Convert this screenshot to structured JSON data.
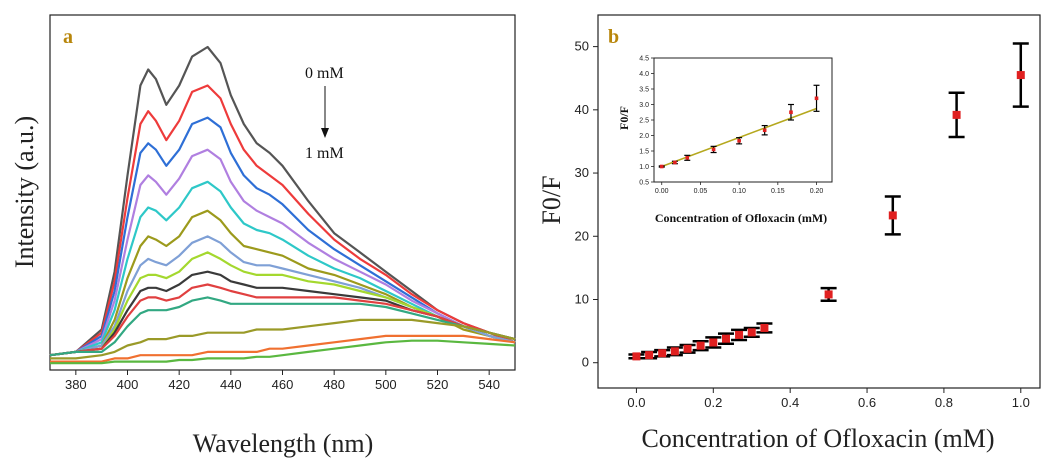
{
  "chart_data": [
    {
      "panel": "a",
      "type": "line",
      "xlabel": "Wavelength (nm)",
      "ylabel": "Intensity (a.u.)",
      "xlim": [
        370,
        550
      ],
      "xticks": [
        380,
        400,
        420,
        440,
        460,
        480,
        500,
        520,
        540
      ],
      "annotations": {
        "top": "0 mM",
        "bottom": "1 mM"
      },
      "colors": [
        "#555555",
        "#ee3b3b",
        "#2e6fd6",
        "#b07fe0",
        "#2ec8c8",
        "#9c9a1c",
        "#7fa0d6",
        "#a4d82e",
        "#3a3a3a",
        "#e04040",
        "#32a882",
        "#9a9a28",
        "#f07030",
        "#5ab840"
      ],
      "series": [
        {
          "x": [
            370,
            380,
            390,
            395,
            400,
            405,
            408,
            411,
            415,
            420,
            425,
            431,
            436,
            440,
            445,
            450,
            455,
            460,
            470,
            480,
            490,
            500,
            510,
            520,
            530,
            540,
            550
          ],
          "y": [
            0.04,
            0.05,
            0.12,
            0.3,
            0.6,
            0.88,
            0.93,
            0.9,
            0.82,
            0.88,
            0.97,
            1.0,
            0.95,
            0.85,
            0.76,
            0.7,
            0.67,
            0.63,
            0.52,
            0.42,
            0.36,
            0.3,
            0.24,
            0.18,
            0.14,
            0.11,
            0.08
          ]
        },
        {
          "x": [
            370,
            380,
            390,
            395,
            400,
            405,
            408,
            411,
            415,
            420,
            425,
            431,
            436,
            440,
            445,
            450,
            455,
            460,
            470,
            480,
            490,
            500,
            510,
            520,
            530,
            540,
            550
          ],
          "y": [
            0.04,
            0.05,
            0.11,
            0.27,
            0.53,
            0.76,
            0.8,
            0.77,
            0.71,
            0.77,
            0.86,
            0.88,
            0.84,
            0.76,
            0.68,
            0.63,
            0.6,
            0.57,
            0.48,
            0.4,
            0.34,
            0.29,
            0.23,
            0.18,
            0.14,
            0.11,
            0.08
          ]
        },
        {
          "x": [
            370,
            380,
            390,
            395,
            400,
            405,
            408,
            411,
            415,
            420,
            425,
            431,
            436,
            440,
            445,
            450,
            455,
            460,
            470,
            480,
            490,
            500,
            510,
            520,
            530,
            540,
            550
          ],
          "y": [
            0.04,
            0.05,
            0.1,
            0.24,
            0.47,
            0.67,
            0.7,
            0.68,
            0.63,
            0.68,
            0.76,
            0.78,
            0.75,
            0.67,
            0.6,
            0.56,
            0.54,
            0.51,
            0.43,
            0.37,
            0.32,
            0.27,
            0.22,
            0.17,
            0.13,
            0.1,
            0.08
          ]
        },
        {
          "x": [
            370,
            380,
            390,
            395,
            400,
            405,
            408,
            411,
            415,
            420,
            425,
            431,
            436,
            440,
            445,
            450,
            455,
            460,
            470,
            480,
            490,
            500,
            510,
            520,
            530,
            540,
            550
          ],
          "y": [
            0.04,
            0.05,
            0.09,
            0.21,
            0.4,
            0.57,
            0.6,
            0.58,
            0.54,
            0.59,
            0.66,
            0.68,
            0.65,
            0.58,
            0.52,
            0.49,
            0.47,
            0.45,
            0.39,
            0.34,
            0.3,
            0.26,
            0.21,
            0.17,
            0.13,
            0.1,
            0.08
          ]
        },
        {
          "x": [
            370,
            380,
            390,
            395,
            400,
            405,
            408,
            411,
            415,
            420,
            425,
            431,
            436,
            440,
            445,
            450,
            455,
            460,
            470,
            480,
            490,
            500,
            510,
            520,
            530,
            540,
            550
          ],
          "y": [
            0.04,
            0.05,
            0.08,
            0.18,
            0.34,
            0.47,
            0.5,
            0.49,
            0.46,
            0.5,
            0.56,
            0.58,
            0.55,
            0.5,
            0.45,
            0.43,
            0.42,
            0.4,
            0.35,
            0.31,
            0.28,
            0.24,
            0.2,
            0.16,
            0.13,
            0.1,
            0.08
          ]
        },
        {
          "x": [
            370,
            380,
            390,
            395,
            400,
            405,
            408,
            411,
            415,
            420,
            425,
            431,
            436,
            440,
            445,
            450,
            455,
            460,
            470,
            480,
            490,
            500,
            510,
            520,
            530,
            540,
            550
          ],
          "y": [
            0.04,
            0.05,
            0.07,
            0.15,
            0.28,
            0.38,
            0.41,
            0.4,
            0.38,
            0.41,
            0.47,
            0.49,
            0.46,
            0.42,
            0.38,
            0.37,
            0.36,
            0.35,
            0.31,
            0.29,
            0.26,
            0.23,
            0.19,
            0.16,
            0.12,
            0.1,
            0.08
          ]
        },
        {
          "x": [
            370,
            380,
            390,
            395,
            400,
            405,
            408,
            411,
            415,
            420,
            425,
            431,
            436,
            440,
            445,
            450,
            455,
            460,
            470,
            480,
            490,
            500,
            510,
            520,
            530,
            540,
            550
          ],
          "y": [
            0.04,
            0.05,
            0.07,
            0.13,
            0.24,
            0.32,
            0.34,
            0.33,
            0.32,
            0.35,
            0.39,
            0.41,
            0.39,
            0.36,
            0.33,
            0.32,
            0.32,
            0.31,
            0.29,
            0.27,
            0.25,
            0.22,
            0.19,
            0.16,
            0.13,
            0.1,
            0.08
          ]
        },
        {
          "x": [
            370,
            380,
            390,
            395,
            400,
            405,
            408,
            411,
            415,
            420,
            425,
            431,
            436,
            440,
            445,
            450,
            455,
            460,
            470,
            480,
            490,
            500,
            510,
            520,
            530,
            540,
            550
          ],
          "y": [
            0.04,
            0.05,
            0.06,
            0.12,
            0.21,
            0.28,
            0.29,
            0.29,
            0.28,
            0.3,
            0.34,
            0.36,
            0.34,
            0.32,
            0.3,
            0.29,
            0.29,
            0.29,
            0.27,
            0.26,
            0.24,
            0.22,
            0.19,
            0.16,
            0.13,
            0.11,
            0.09
          ]
        },
        {
          "x": [
            370,
            380,
            390,
            395,
            400,
            405,
            408,
            411,
            415,
            420,
            425,
            431,
            436,
            440,
            445,
            450,
            455,
            460,
            470,
            480,
            490,
            500,
            510,
            520,
            530,
            540,
            550
          ],
          "y": [
            0.04,
            0.05,
            0.06,
            0.11,
            0.18,
            0.24,
            0.25,
            0.25,
            0.24,
            0.26,
            0.29,
            0.3,
            0.29,
            0.27,
            0.26,
            0.25,
            0.25,
            0.25,
            0.24,
            0.23,
            0.22,
            0.21,
            0.18,
            0.16,
            0.13,
            0.11,
            0.09
          ]
        },
        {
          "x": [
            370,
            380,
            390,
            395,
            400,
            405,
            408,
            411,
            415,
            420,
            425,
            431,
            436,
            440,
            445,
            450,
            455,
            460,
            470,
            480,
            490,
            500,
            510,
            520,
            530,
            540,
            550
          ],
          "y": [
            0.04,
            0.05,
            0.06,
            0.1,
            0.16,
            0.21,
            0.22,
            0.22,
            0.21,
            0.22,
            0.25,
            0.26,
            0.25,
            0.24,
            0.23,
            0.22,
            0.22,
            0.22,
            0.22,
            0.22,
            0.21,
            0.2,
            0.18,
            0.16,
            0.13,
            0.11,
            0.09
          ]
        },
        {
          "x": [
            370,
            380,
            390,
            395,
            400,
            405,
            408,
            411,
            415,
            420,
            425,
            431,
            436,
            440,
            445,
            450,
            455,
            460,
            470,
            480,
            490,
            500,
            510,
            520,
            530,
            540,
            550
          ],
          "y": [
            0.04,
            0.05,
            0.05,
            0.08,
            0.13,
            0.17,
            0.18,
            0.18,
            0.18,
            0.19,
            0.21,
            0.22,
            0.21,
            0.2,
            0.2,
            0.2,
            0.2,
            0.2,
            0.2,
            0.2,
            0.2,
            0.19,
            0.17,
            0.15,
            0.13,
            0.11,
            0.09
          ]
        },
        {
          "x": [
            370,
            380,
            390,
            395,
            400,
            405,
            408,
            411,
            415,
            420,
            425,
            431,
            436,
            440,
            445,
            450,
            455,
            460,
            470,
            480,
            490,
            500,
            510,
            520,
            530,
            540,
            550
          ],
          "y": [
            0.03,
            0.03,
            0.04,
            0.05,
            0.07,
            0.08,
            0.09,
            0.09,
            0.09,
            0.1,
            0.1,
            0.11,
            0.11,
            0.11,
            0.11,
            0.12,
            0.12,
            0.12,
            0.13,
            0.14,
            0.15,
            0.15,
            0.15,
            0.14,
            0.13,
            0.11,
            0.09
          ]
        },
        {
          "x": [
            370,
            380,
            390,
            395,
            400,
            405,
            408,
            411,
            415,
            420,
            425,
            431,
            436,
            440,
            445,
            450,
            455,
            460,
            470,
            480,
            490,
            500,
            510,
            520,
            530,
            540,
            550
          ],
          "y": [
            0.02,
            0.02,
            0.02,
            0.03,
            0.03,
            0.04,
            0.04,
            0.04,
            0.04,
            0.04,
            0.04,
            0.05,
            0.05,
            0.05,
            0.05,
            0.05,
            0.06,
            0.06,
            0.07,
            0.08,
            0.09,
            0.1,
            0.1,
            0.1,
            0.1,
            0.09,
            0.08
          ]
        },
        {
          "x": [
            370,
            380,
            390,
            395,
            400,
            405,
            408,
            411,
            415,
            420,
            425,
            431,
            436,
            440,
            445,
            450,
            455,
            460,
            470,
            480,
            490,
            500,
            510,
            520,
            530,
            540,
            550
          ],
          "y": [
            0.015,
            0.015,
            0.015,
            0.02,
            0.02,
            0.02,
            0.02,
            0.02,
            0.02,
            0.025,
            0.025,
            0.03,
            0.03,
            0.03,
            0.03,
            0.035,
            0.035,
            0.04,
            0.05,
            0.06,
            0.07,
            0.08,
            0.085,
            0.085,
            0.08,
            0.075,
            0.07
          ]
        }
      ]
    },
    {
      "panel": "b",
      "type": "scatter",
      "xlabel": "Concentration of Ofloxacin (mM)",
      "ylabel": "F0/F",
      "xlim": [
        -0.1,
        1.05
      ],
      "ylim": [
        -4,
        55
      ],
      "xticks": [
        0.0,
        0.2,
        0.4,
        0.6,
        0.8,
        1.0
      ],
      "xtick_labels": [
        "0.0",
        "0.2",
        "0.4",
        "0.6",
        "0.8",
        "1.0"
      ],
      "yticks": [
        0,
        10,
        20,
        30,
        40,
        50
      ],
      "marker_color": "#e02020",
      "points": [
        {
          "x": 0.0,
          "y": 1.0,
          "err": 0.3
        },
        {
          "x": 0.033,
          "y": 1.2,
          "err": 0.5
        },
        {
          "x": 0.067,
          "y": 1.5,
          "err": 0.5
        },
        {
          "x": 0.1,
          "y": 1.8,
          "err": 0.6
        },
        {
          "x": 0.133,
          "y": 2.2,
          "err": 0.6
        },
        {
          "x": 0.167,
          "y": 2.7,
          "err": 0.7
        },
        {
          "x": 0.2,
          "y": 3.2,
          "err": 0.8
        },
        {
          "x": 0.233,
          "y": 3.8,
          "err": 0.8
        },
        {
          "x": 0.267,
          "y": 4.4,
          "err": 0.8
        },
        {
          "x": 0.3,
          "y": 4.8,
          "err": 0.7
        },
        {
          "x": 0.333,
          "y": 5.5,
          "err": 0.7
        },
        {
          "x": 0.5,
          "y": 10.8,
          "err": 1.0
        },
        {
          "x": 0.667,
          "y": 23.3,
          "err": 3.0
        },
        {
          "x": 0.833,
          "y": 39.2,
          "err": 3.5
        },
        {
          "x": 1.0,
          "y": 45.5,
          "err": 5.0
        }
      ],
      "inset": {
        "type": "scatter",
        "xlabel": "Concentration of Ofloxacin (mM)",
        "ylabel": "F0/F",
        "xlim": [
          -0.01,
          0.22
        ],
        "ylim": [
          0.5,
          4.5
        ],
        "xticks": [
          0.0,
          0.05,
          0.1,
          0.15,
          0.2
        ],
        "xtick_labels": [
          "0.00",
          "0.05",
          "0.10",
          "0.15",
          "0.20"
        ],
        "yticks": [
          0.5,
          1.0,
          1.5,
          2.0,
          2.5,
          3.0,
          3.5,
          4.0,
          4.5
        ],
        "ytick_labels": [
          "0.5",
          "1.0",
          "1.5",
          "2.0",
          "2.5",
          "3.0",
          "3.5",
          "4.0",
          "4.5"
        ],
        "fit_line": {
          "x": [
            0.0,
            0.2
          ],
          "y": [
            1.0,
            2.87
          ],
          "color": "#b5a81e"
        },
        "points": [
          {
            "x": 0.0,
            "y": 1.0,
            "err": 0.02
          },
          {
            "x": 0.017,
            "y": 1.13,
            "err": 0.04
          },
          {
            "x": 0.033,
            "y": 1.28,
            "err": 0.08
          },
          {
            "x": 0.067,
            "y": 1.55,
            "err": 0.1
          },
          {
            "x": 0.1,
            "y": 1.83,
            "err": 0.1
          },
          {
            "x": 0.133,
            "y": 2.17,
            "err": 0.15
          },
          {
            "x": 0.167,
            "y": 2.75,
            "err": 0.25
          },
          {
            "x": 0.2,
            "y": 3.2,
            "err": 0.42
          }
        ]
      }
    }
  ],
  "labels": {
    "panel_a": "a",
    "panel_b": "b",
    "arrow_top": "0 mM",
    "arrow_bottom": "1 mM",
    "a_xlabel": "Wavelength (nm)",
    "a_ylabel": "Intensity (a.u.)",
    "b_xlabel": "Concentration of Ofloxacin (mM)",
    "b_ylabel": "F0/F",
    "inset_xlabel": "Concentration of Ofloxacin (mM)",
    "inset_ylabel": "F0/F"
  }
}
